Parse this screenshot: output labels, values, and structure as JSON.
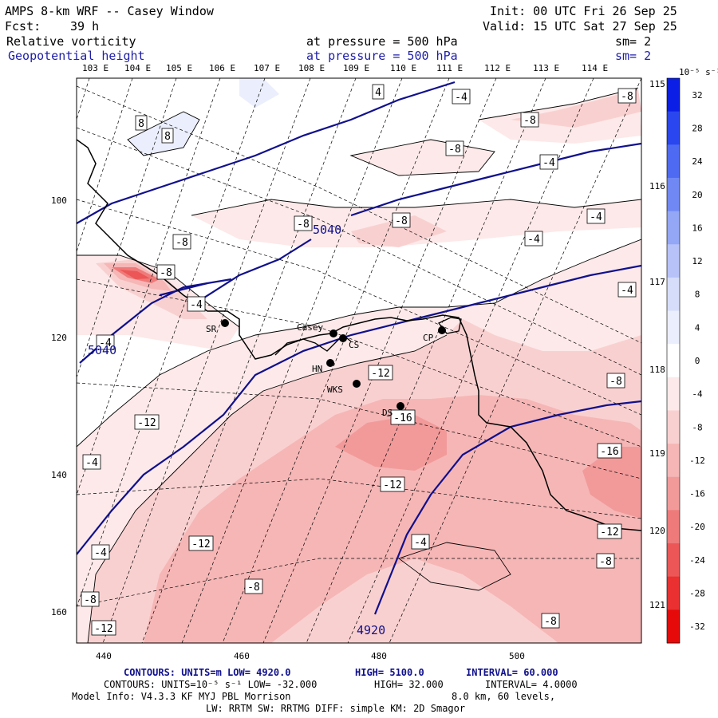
{
  "header": {
    "title": "AMPS 8-km WRF -- Casey Window",
    "init": "Init: 00 UTC Fri 26 Sep 25",
    "fcst_label": "Fcst:",
    "fcst_value": "39 h",
    "valid": "Valid: 15 UTC Sat 27 Sep 25",
    "field1_name": "Relative vorticity",
    "field1_level": "at pressure =  500 hPa",
    "field1_sm": "sm= 2",
    "field2_name": "Geopotential height",
    "field2_level": "at pressure =  500 hPa",
    "field2_sm": "sm= 2"
  },
  "map": {
    "top_longitudes": [
      "103 E",
      "104 E",
      "105 E",
      "106 E",
      "107 E",
      "108 E",
      "109 E",
      "110 E",
      "111 E",
      "112 E",
      "113 E",
      "114 E"
    ],
    "right_longitudes": [
      "115 E",
      "116 E",
      "117 E",
      "118 E",
      "119 E",
      "120 E",
      "121 E"
    ],
    "x_ticks": [
      "440",
      "460",
      "480",
      "500"
    ],
    "y_ticks": [
      "100",
      "120",
      "140",
      "160"
    ],
    "stations": [
      {
        "name": "SR"
      },
      {
        "name": "Casey"
      },
      {
        "name": "CS"
      },
      {
        "name": "CP"
      },
      {
        "name": "HN"
      },
      {
        "name": "WKS"
      },
      {
        "name": "DS"
      }
    ],
    "height_contour_labels": [
      "5040",
      "5040",
      "4920"
    ],
    "vorticity_contour_labels": [
      "4",
      "-4",
      "-8",
      "8",
      "8",
      "-8",
      "-8",
      "-4",
      "-8",
      "-8",
      "-4",
      "-4",
      "-8",
      "-8",
      "-4",
      "-4",
      "-12",
      "-4",
      "-8",
      "-12",
      "-16",
      "-4",
      "-12",
      "-16",
      "-4",
      "-12",
      "-12",
      "-4",
      "-8",
      "-8",
      "-8",
      "-8",
      "-12"
    ]
  },
  "colorbar": {
    "units": "10⁻⁵ s⁻¹",
    "ticks": [
      "32",
      "28",
      "24",
      "20",
      "16",
      "12",
      "8",
      "4",
      "0",
      "-4",
      "-8",
      "-12",
      "-16",
      "-20",
      "-24",
      "-28",
      "-32"
    ],
    "colors": [
      "#0a1ee6",
      "#2a46ee",
      "#4f6af2",
      "#7088f4",
      "#94a6f6",
      "#b6c2f8",
      "#d6ddfa",
      "#ebeefc",
      "#ffffff",
      "#fde9e9",
      "#f9d0d0",
      "#f6b6b6",
      "#f29a9a",
      "#ef7a7a",
      "#ec5656",
      "#ea3030",
      "#e60a0a"
    ]
  },
  "footer": {
    "line1_a": "CONTOURS:  UNITS=m  LOW=  4920.0",
    "line1_b": "HIGH=  5100.0",
    "line1_c": "INTERVAL=   60.000",
    "line2_a": "CONTOURS:  UNITS=10⁻⁵ s⁻¹  LOW= -32.000",
    "line2_b": "HIGH=  32.000",
    "line2_c": "INTERVAL=   4.0000",
    "line3_a": "Model Info: V4.3.3   KF     MYJ PBL  Morrison",
    "line3_b": "8.0 km,  60 levels,",
    "line4": "LW: RRTM SW: RRTMG   DIFF: simple KM: 2D Smagor"
  }
}
